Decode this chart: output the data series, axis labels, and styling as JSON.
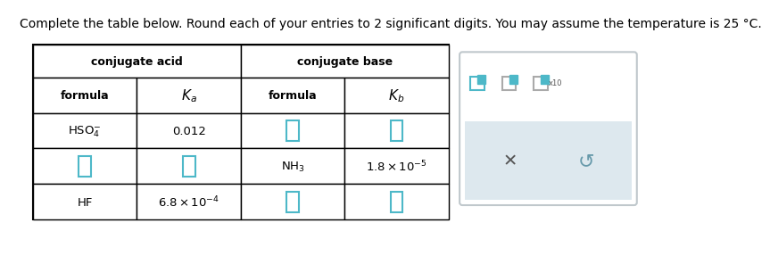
{
  "title": "Complete the table below. Round each of your entries to 2 significant digits. You may assume the temperature is 25 °C.",
  "title_fontsize": 10.0,
  "bg_color": "#ffffff",
  "col_acid_header": "conjugate acid",
  "col_base_header": "conjugate base",
  "empty_box_color": "#ffffff",
  "empty_box_border": "#4db8c8",
  "text_color": "#000000",
  "table_bg": "#ffffff",
  "panel_bg": "#ffffff",
  "panel_border": "#cccccc",
  "gray_band": "#dde8ee",
  "icon_color": "#4db8c8",
  "icon_outline": "#888888",
  "x_btn_color": "#555555",
  "undo_color": "#6699aa"
}
